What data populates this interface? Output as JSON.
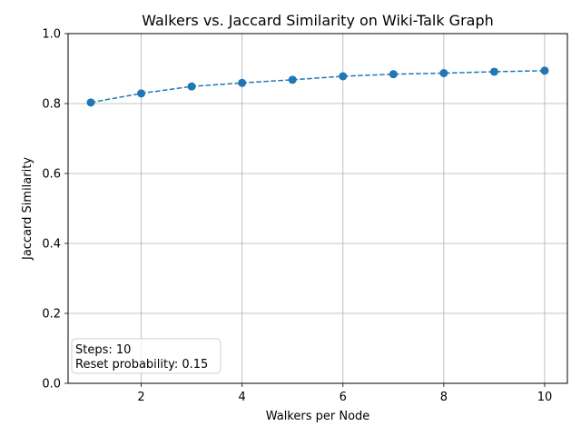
{
  "chart_data": {
    "type": "line",
    "title": "Walkers vs. Jaccard Similarity on Wiki-Talk Graph",
    "xlabel": "Walkers per Node",
    "ylabel": "Jaccard Similarity",
    "xlim": [
      0.55,
      10.45
    ],
    "ylim": [
      0.0,
      1.0
    ],
    "xticks": [
      2,
      4,
      6,
      8,
      10
    ],
    "xtick_labels": [
      "2",
      "4",
      "6",
      "8",
      "10"
    ],
    "yticks": [
      0.0,
      0.2,
      0.4,
      0.6,
      0.8,
      1.0
    ],
    "ytick_labels": [
      "0.0",
      "0.2",
      "0.4",
      "0.6",
      "0.8",
      "1.0"
    ],
    "grid": true,
    "series": [
      {
        "x": [
          1,
          2,
          3,
          4,
          5,
          6,
          7,
          8,
          9,
          10
        ],
        "values": [
          0.803,
          0.829,
          0.849,
          0.859,
          0.868,
          0.878,
          0.884,
          0.887,
          0.891,
          0.894
        ],
        "color": "#1f77b4",
        "linestyle": "dashed",
        "marker": "circle"
      }
    ],
    "annotation": {
      "lines": [
        "Steps: 10",
        "Reset probability: 0.15"
      ],
      "placement": "bottom-left"
    }
  }
}
